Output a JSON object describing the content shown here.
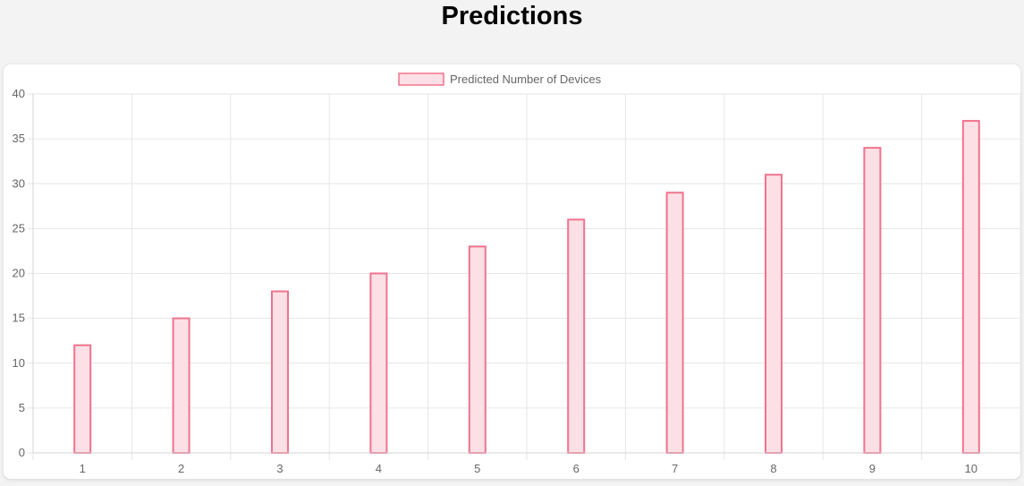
{
  "page": {
    "title": "Predictions"
  },
  "colors": {
    "bar_fill": "#fde0e6",
    "bar_stroke": "#f0738e",
    "grid": "#e6e6e6",
    "tick_text": "#666666"
  },
  "chart_data": {
    "type": "bar",
    "categories": [
      "1",
      "2",
      "3",
      "4",
      "5",
      "6",
      "7",
      "8",
      "9",
      "10"
    ],
    "series": [
      {
        "name": "Predicted Number of Devices",
        "values": [
          12,
          15,
          18,
          20,
          23,
          26,
          29,
          31,
          34,
          37
        ]
      }
    ],
    "ylim": [
      0,
      40
    ],
    "yticks": [
      0,
      5,
      10,
      15,
      20,
      25,
      30,
      35,
      40
    ],
    "grid": true,
    "legend_position": "top-center"
  }
}
